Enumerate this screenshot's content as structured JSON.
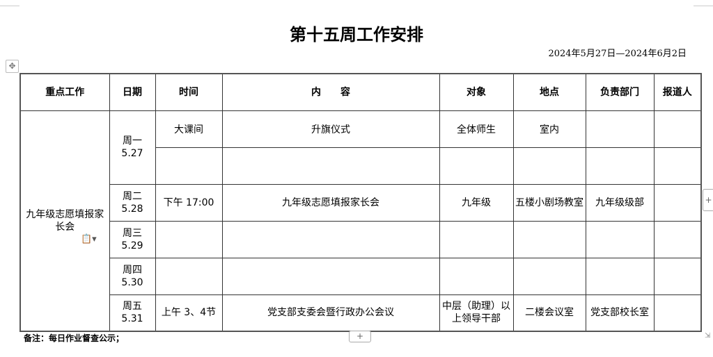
{
  "title": "第十五周工作安排",
  "date_range": "2024年5月27日—2024年6月2日",
  "headers": [
    "重点工作",
    "日期",
    "时间",
    "内　　容",
    "对象",
    "地点",
    "负责部门",
    "报道人"
  ],
  "key_work": "九年级志愿填报家长会",
  "rows": [
    {
      "day": "周一",
      "date": "5.27",
      "time": "大课间",
      "content": "升旗仪式",
      "target": "全体师生",
      "place": "室内",
      "dept": "",
      "reporter": ""
    },
    {
      "time": "",
      "content": "",
      "target": "",
      "place": "",
      "dept": "",
      "reporter": ""
    },
    {
      "day": "周二",
      "date": "5.28",
      "time": "下午 17:00",
      "content": "九年级志愿填报家长会",
      "target": "九年级",
      "place": "五楼小剧场教室",
      "dept": "九年级级部",
      "reporter": ""
    },
    {
      "day": "周三",
      "date": "5.29",
      "time": "",
      "content": "",
      "target": "",
      "place": "",
      "dept": "",
      "reporter": ""
    },
    {
      "day": "周四",
      "date": "5.30",
      "time": "",
      "content": "",
      "target": "",
      "place": "",
      "dept": "",
      "reporter": ""
    },
    {
      "day": "周五",
      "date": "5.31",
      "time": "上午 3、4节",
      "content": "党支部支委会暨行政办公会议",
      "target": "中层（助理）以上领导干部",
      "place": "二楼会议室",
      "dept": "党支部校长室",
      "reporter": ""
    }
  ],
  "note": "备注：每日作业督查公示；",
  "controls": {
    "add_row": "+",
    "add_col": "+",
    "move": "✥"
  }
}
